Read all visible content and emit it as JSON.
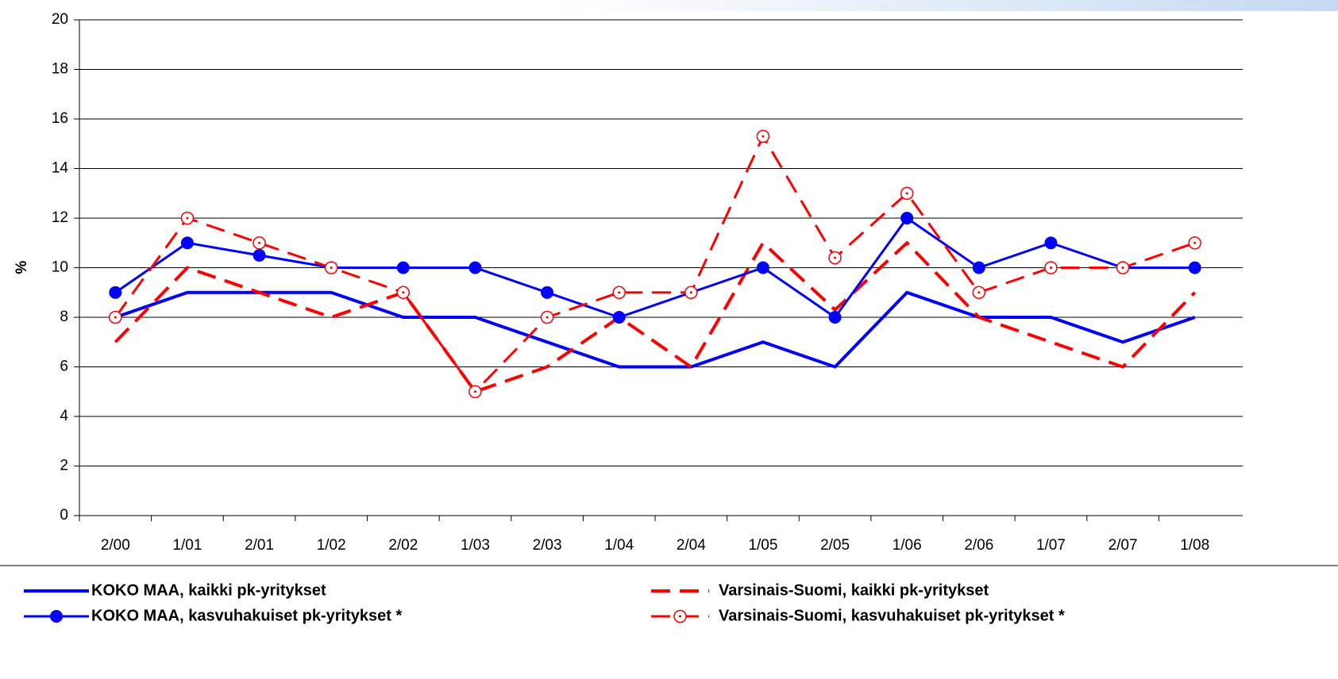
{
  "chart_data": {
    "type": "line",
    "y_label": "%",
    "categories": [
      "2/00",
      "1/01",
      "2/01",
      "1/02",
      "2/02",
      "1/03",
      "2/03",
      "1/04",
      "2/04",
      "1/05",
      "2/05",
      "1/06",
      "2/06",
      "1/07",
      "2/07",
      "1/08"
    ],
    "ylim": [
      0,
      20
    ],
    "yticks": [
      0,
      2,
      4,
      6,
      8,
      10,
      12,
      14,
      16,
      18,
      20
    ],
    "grid": true,
    "series": [
      {
        "name": "KOKO MAA, kaikki pk-yritykset",
        "color": "#0000ff",
        "style": "solid",
        "marker": "none",
        "values": [
          8,
          9,
          9,
          9,
          8,
          8,
          7,
          6,
          6,
          7,
          6,
          9,
          8,
          8,
          7,
          8
        ]
      },
      {
        "name": "Varsinais-Suomi, kaikki pk-yritykset",
        "color": "#ff0000",
        "style": "dashed",
        "marker": "none",
        "values": [
          7,
          10,
          9,
          8,
          9,
          5,
          6,
          8,
          6,
          11,
          8.3,
          11,
          8,
          7,
          6,
          9
        ]
      },
      {
        "name": "KOKO MAA, kasvuhakuiset pk-yritykset *",
        "color": "#0000ff",
        "style": "solid",
        "marker": "filled",
        "values": [
          9,
          11,
          10.5,
          10,
          10,
          10,
          9,
          8,
          9,
          10,
          8,
          12,
          10,
          11,
          10,
          10
        ]
      },
      {
        "name": "Varsinais-Suomi, kasvuhakuiset pk-yritykset *",
        "color": "#ff0000",
        "style": "dashed",
        "marker": "open",
        "values": [
          8,
          12,
          11,
          10,
          9,
          5,
          8,
          9,
          9,
          15.3,
          10.4,
          13,
          9,
          10,
          10,
          11
        ]
      }
    ]
  }
}
